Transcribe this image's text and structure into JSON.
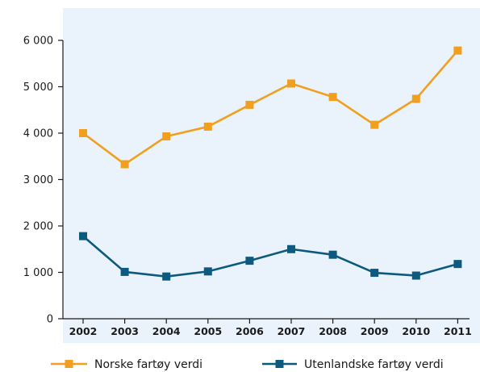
{
  "chart_data": {
    "type": "line",
    "title": "",
    "xlabel": "",
    "ylabel": "",
    "categories": [
      "2002",
      "2003",
      "2004",
      "2005",
      "2006",
      "2007",
      "2008",
      "2009",
      "2010",
      "2011"
    ],
    "ylim": [
      0,
      6000
    ],
    "yticks": [
      0,
      1000,
      2000,
      3000,
      4000,
      5000,
      6000
    ],
    "ytick_labels": [
      "0",
      "1 000",
      "2 000",
      "3 000",
      "4 000",
      "5 000",
      "6 000"
    ],
    "grid": false,
    "background": "#eaf3fb",
    "legend_placement": "bottom",
    "series": [
      {
        "name": "Norske fartøy verdi",
        "color": "#f0a01e",
        "marker": "square",
        "values": [
          4000,
          3330,
          3930,
          4140,
          4610,
          5070,
          4780,
          4180,
          4740,
          5780
        ]
      },
      {
        "name": "Utenlandske fartøy verdi",
        "color": "#0c5a7e",
        "marker": "square",
        "values": [
          1780,
          1010,
          910,
          1020,
          1250,
          1500,
          1380,
          990,
          930,
          1180
        ]
      }
    ]
  }
}
